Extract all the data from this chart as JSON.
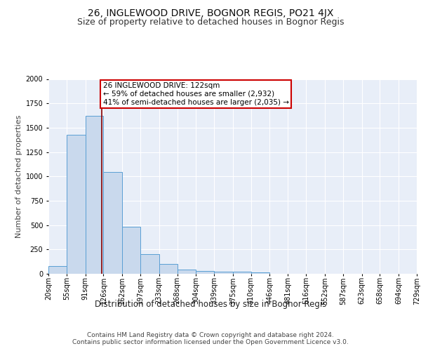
{
  "title": "26, INGLEWOOD DRIVE, BOGNOR REGIS, PO21 4JX",
  "subtitle": "Size of property relative to detached houses in Bognor Regis",
  "xlabel": "Distribution of detached houses by size in Bognor Regis",
  "ylabel": "Number of detached properties",
  "bar_edges": [
    20,
    55,
    91,
    126,
    162,
    197,
    233,
    268,
    304,
    339,
    375,
    410,
    446,
    481,
    516,
    552,
    587,
    623,
    658,
    694,
    729
  ],
  "bar_heights": [
    82,
    1425,
    1620,
    1048,
    480,
    202,
    100,
    42,
    28,
    22,
    20,
    18,
    0,
    0,
    0,
    0,
    0,
    0,
    0,
    0
  ],
  "bar_color": "#c9d9ed",
  "bar_edge_color": "#5a9fd4",
  "vline_x": 122,
  "vline_color": "#8b0000",
  "annotation_text": "26 INGLEWOOD DRIVE: 122sqm\n← 59% of detached houses are smaller (2,932)\n41% of semi-detached houses are larger (2,035) →",
  "annotation_box_color": "white",
  "annotation_box_edge": "#cc0000",
  "ylim": [
    0,
    2000
  ],
  "xlim": [
    20,
    729
  ],
  "tick_labels": [
    "20sqm",
    "55sqm",
    "91sqm",
    "126sqm",
    "162sqm",
    "197sqm",
    "233sqm",
    "268sqm",
    "304sqm",
    "339sqm",
    "375sqm",
    "410sqm",
    "446sqm",
    "481sqm",
    "516sqm",
    "552sqm",
    "587sqm",
    "623sqm",
    "658sqm",
    "694sqm",
    "729sqm"
  ],
  "footer_text": "Contains HM Land Registry data © Crown copyright and database right 2024.\nContains public sector information licensed under the Open Government Licence v3.0.",
  "background_color": "#e8eef8",
  "grid_color": "white",
  "title_fontsize": 10,
  "subtitle_fontsize": 9,
  "xlabel_fontsize": 8.5,
  "ylabel_fontsize": 8,
  "tick_fontsize": 7,
  "footer_fontsize": 6.5,
  "ann_fontsize": 7.5
}
